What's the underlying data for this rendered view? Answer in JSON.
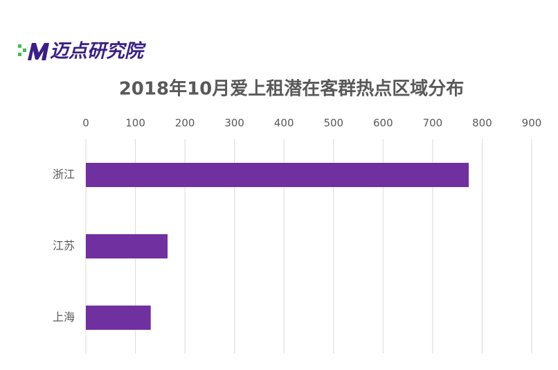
{
  "logo": "迈点研究院",
  "chart_data": {
    "type": "bar",
    "orientation": "horizontal",
    "title": "2018年10月爱上租潜在客群热点区域分布",
    "categories": [
      "浙江",
      "江苏",
      "上海"
    ],
    "values": [
      773,
      165,
      131
    ],
    "color": "#7030a0",
    "xlim": [
      0,
      900
    ],
    "xticks": [
      0,
      100,
      200,
      300,
      400,
      500,
      600,
      700,
      800,
      900
    ],
    "grid": true
  }
}
